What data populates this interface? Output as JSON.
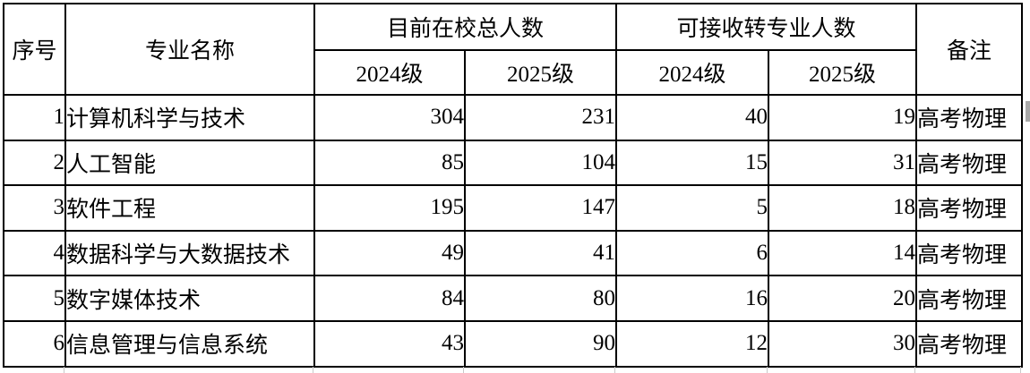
{
  "table": {
    "headers": {
      "index": "序号",
      "major": "专业名称",
      "current_total": "目前在校总人数",
      "transfer_capacity": "可接收转专业人数",
      "remark": "备注",
      "cohort_2024": "2024级",
      "cohort_2025": "2025级"
    },
    "rows": [
      {
        "index": "1",
        "major": "计算机科学与技术",
        "current_2024": "304",
        "current_2025": "231",
        "transfer_2024": "40",
        "transfer_2025": "19",
        "remark": "高考物理"
      },
      {
        "index": "2",
        "major": "人工智能",
        "current_2024": "85",
        "current_2025": "104",
        "transfer_2024": "15",
        "transfer_2025": "31",
        "remark": "高考物理"
      },
      {
        "index": "3",
        "major": "软件工程",
        "current_2024": "195",
        "current_2025": "147",
        "transfer_2024": "5",
        "transfer_2025": "18",
        "remark": "高考物理"
      },
      {
        "index": "4",
        "major": "数据科学与大数据技术",
        "current_2024": "49",
        "current_2025": "41",
        "transfer_2024": "6",
        "transfer_2025": "14",
        "remark": "高考物理"
      },
      {
        "index": "5",
        "major": "数字媒体技术",
        "current_2024": "84",
        "current_2025": "80",
        "transfer_2024": "16",
        "transfer_2025": "20",
        "remark": "高考物理"
      },
      {
        "index": "6",
        "major": "信息管理与信息系统",
        "current_2024": "43",
        "current_2025": "90",
        "transfer_2024": "12",
        "transfer_2025": "30",
        "remark": "高考物理"
      }
    ]
  },
  "chart_data": {
    "type": "table",
    "title": "",
    "columns": [
      "序号",
      "专业名称",
      "目前在校总人数 2024级",
      "目前在校总人数 2025级",
      "可接收转专业人数 2024级",
      "可接收转专业人数 2025级",
      "备注"
    ],
    "rows": [
      [
        1,
        "计算机科学与技术",
        304,
        231,
        40,
        19,
        "高考物理"
      ],
      [
        2,
        "人工智能",
        85,
        104,
        15,
        31,
        "高考物理"
      ],
      [
        3,
        "软件工程",
        195,
        147,
        5,
        18,
        "高考物理"
      ],
      [
        4,
        "数据科学与大数据技术",
        49,
        41,
        6,
        14,
        "高考物理"
      ],
      [
        5,
        "数字媒体技术",
        84,
        80,
        16,
        20,
        "高考物理"
      ],
      [
        6,
        "信息管理与信息系统",
        43,
        90,
        12,
        30,
        "高考物理"
      ]
    ]
  },
  "colors": {
    "border": "#000000",
    "background": "#ffffff",
    "text": "#000000",
    "gridline_stub": "#c9c9c9",
    "edge_tick": "#a9a9a9"
  }
}
